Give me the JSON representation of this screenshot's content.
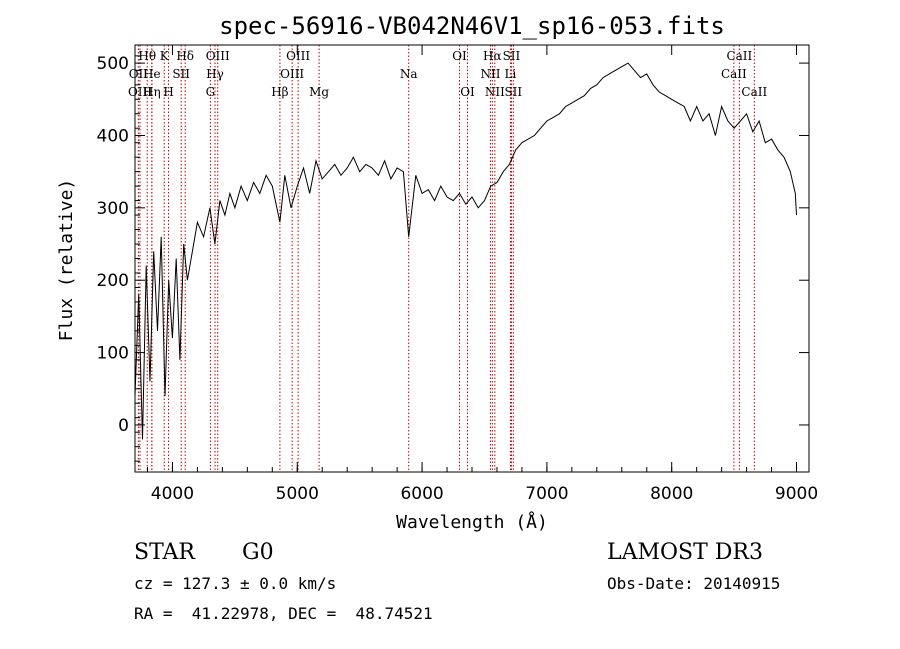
{
  "chart_data": {
    "type": "line",
    "title": "spec-56916-VB042N46V1_sp16-053.fits",
    "xlabel": "Wavelength (Å)",
    "ylabel": "Flux (relative)",
    "xlim": [
      3700,
      9100
    ],
    "ylim": [
      -65,
      525
    ],
    "xticks": [
      4000,
      5000,
      6000,
      7000,
      8000,
      9000
    ],
    "yticks": [
      0,
      100,
      200,
      300,
      400,
      500
    ],
    "series": [
      {
        "name": "flux",
        "x": [
          3700,
          3730,
          3760,
          3790,
          3820,
          3850,
          3880,
          3910,
          3940,
          3970,
          4000,
          4030,
          4060,
          4090,
          4120,
          4160,
          4200,
          4250,
          4300,
          4340,
          4380,
          4420,
          4460,
          4500,
          4550,
          4600,
          4650,
          4700,
          4750,
          4800,
          4861,
          4900,
          4950,
          5000,
          5050,
          5100,
          5150,
          5200,
          5250,
          5300,
          5350,
          5400,
          5450,
          5500,
          5550,
          5600,
          5650,
          5700,
          5750,
          5800,
          5850,
          5893,
          5950,
          6000,
          6050,
          6100,
          6150,
          6200,
          6250,
          6300,
          6350,
          6400,
          6450,
          6500,
          6550,
          6600,
          6650,
          6700,
          6750,
          6800,
          6850,
          6900,
          6950,
          7000,
          7050,
          7100,
          7150,
          7200,
          7250,
          7300,
          7350,
          7400,
          7450,
          7500,
          7550,
          7600,
          7650,
          7700,
          7750,
          7800,
          7850,
          7900,
          7950,
          8000,
          8050,
          8100,
          8150,
          8200,
          8250,
          8300,
          8350,
          8400,
          8450,
          8500,
          8550,
          8600,
          8650,
          8700,
          8750,
          8800,
          8850,
          8900,
          8950,
          8990,
          9000
        ],
        "y": [
          40,
          180,
          -20,
          220,
          60,
          240,
          130,
          260,
          40,
          200,
          120,
          230,
          90,
          250,
          200,
          240,
          280,
          260,
          300,
          250,
          310,
          290,
          320,
          300,
          330,
          310,
          335,
          320,
          345,
          330,
          280,
          345,
          300,
          330,
          355,
          320,
          365,
          340,
          350,
          360,
          345,
          355,
          370,
          350,
          360,
          355,
          345,
          365,
          340,
          355,
          350,
          260,
          345,
          320,
          325,
          310,
          330,
          315,
          310,
          320,
          305,
          315,
          300,
          310,
          330,
          335,
          350,
          360,
          380,
          390,
          395,
          400,
          410,
          420,
          425,
          430,
          440,
          445,
          450,
          455,
          465,
          470,
          480,
          485,
          490,
          495,
          500,
          490,
          480,
          485,
          470,
          460,
          455,
          450,
          445,
          440,
          420,
          440,
          420,
          430,
          400,
          440,
          420,
          410,
          420,
          430,
          405,
          420,
          390,
          395,
          380,
          370,
          350,
          320,
          290
        ]
      }
    ],
    "lines": [
      {
        "label": "Hθ",
        "x": 3798,
        "row": 1
      },
      {
        "label": "OII",
        "x": 3727,
        "row": 2
      },
      {
        "label": "OIII",
        "x": 3740,
        "row": 3
      },
      {
        "label": "He",
        "x": 3835,
        "row": 2
      },
      {
        "label": "Hη",
        "x": 3835,
        "row": 3
      },
      {
        "label": "K",
        "x": 3934,
        "row": 1
      },
      {
        "label": "H",
        "x": 3969,
        "row": 3
      },
      {
        "label": "SII",
        "x": 4070,
        "row": 2
      },
      {
        "label": "Hδ",
        "x": 4102,
        "row": 1
      },
      {
        "label": "OIII",
        "x": 4363,
        "row": 1
      },
      {
        "label": "Hγ",
        "x": 4341,
        "row": 2
      },
      {
        "label": "G",
        "x": 4304,
        "row": 3
      },
      {
        "label": "Hβ",
        "x": 4861,
        "row": 3
      },
      {
        "label": "OIII",
        "x": 5007,
        "row": 1
      },
      {
        "label": "OIII",
        "x": 4959,
        "row": 2
      },
      {
        "label": "Mg",
        "x": 5175,
        "row": 3
      },
      {
        "label": "Na",
        "x": 5893,
        "row": 2
      },
      {
        "label": "OI",
        "x": 6300,
        "row": 1
      },
      {
        "label": "OI",
        "x": 6364,
        "row": 3
      },
      {
        "label": "Hα",
        "x": 6563,
        "row": 1
      },
      {
        "label": "NII",
        "x": 6548,
        "row": 2
      },
      {
        "label": "NII",
        "x": 6583,
        "row": 3
      },
      {
        "label": "SII",
        "x": 6716,
        "row": 1
      },
      {
        "label": "Li",
        "x": 6708,
        "row": 2
      },
      {
        "label": "SII",
        "x": 6731,
        "row": 3
      },
      {
        "label": "CaII",
        "x": 8542,
        "row": 1
      },
      {
        "label": "CaII",
        "x": 8498,
        "row": 2
      },
      {
        "label": "CaII",
        "x": 8662,
        "row": 3
      }
    ]
  },
  "info": {
    "class": "STAR",
    "subclass": "G0",
    "survey": "LAMOST DR3",
    "cz": "cz = 127.3 ± 0.0 km/s",
    "obs_date": "Obs-Date: 20140915",
    "coords": "RA =  41.22978, DEC =  48.74521"
  },
  "colors": {
    "line_marker": "#c00000",
    "spectrum": "#000000",
    "axes": "#000000"
  }
}
